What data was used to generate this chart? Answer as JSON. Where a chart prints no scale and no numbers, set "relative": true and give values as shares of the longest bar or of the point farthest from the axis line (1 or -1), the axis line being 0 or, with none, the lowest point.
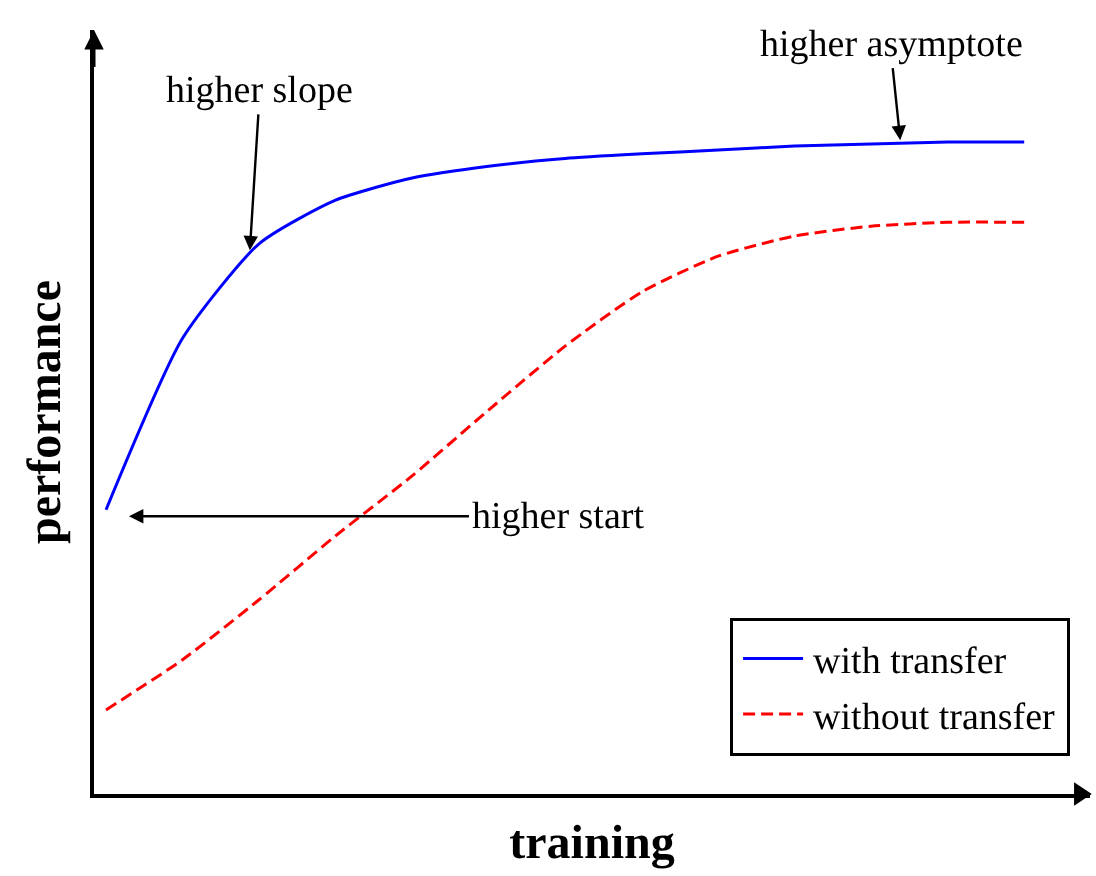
{
  "chart_data": {
    "type": "line",
    "relative": true,
    "xlabel": "training",
    "ylabel": "performance",
    "categories": [
      null,
      null,
      null,
      null,
      null,
      null,
      null,
      null,
      null,
      null,
      null,
      null,
      null
    ],
    "series": [
      {
        "name": "with transfer",
        "color": "#0000ff",
        "line_style": "solid",
        "values": [
          0.436,
          0.699,
          0.844,
          0.911,
          0.945,
          0.963,
          0.975,
          0.982,
          0.988,
          0.994,
          0.997,
          1,
          1
        ]
      },
      {
        "name": "without transfer",
        "color": "#ff0000",
        "line_style": "dashed",
        "values": [
          0.129,
          0.206,
          0.298,
          0.396,
          0.488,
          0.589,
          0.687,
          0.77,
          0.825,
          0.856,
          0.871,
          0.877,
          0.877
        ]
      }
    ],
    "annotations": [
      "higher slope",
      "higher asymptote",
      "higher start"
    ],
    "legend": "bottom right"
  }
}
